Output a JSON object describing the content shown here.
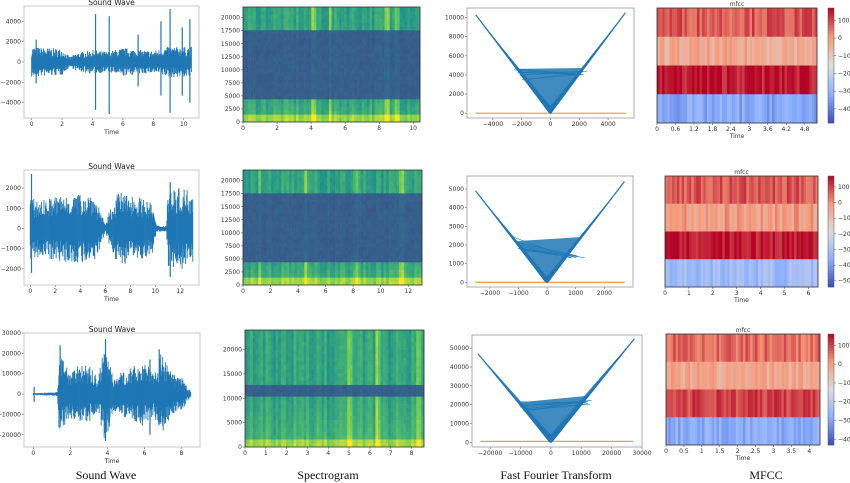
{
  "captions": [
    "Sound Wave",
    "Spectrogram",
    "Fast Fourier Transform",
    "MFCC"
  ],
  "colors": {
    "wave": "#1f77b4",
    "fft_baseline": "#ff9f40",
    "spectrogram_cmap": "viridis",
    "mfcc_cmap": "coolwarm"
  },
  "chart_data": [
    {
      "type": "line",
      "kind": "sound-wave",
      "row": 1,
      "title": "Sound Wave",
      "xlabel": "Time",
      "xlim": [
        -0.5,
        11
      ],
      "ylim": [
        -5500,
        5500
      ],
      "xticks": [
        0,
        2,
        4,
        6,
        8,
        10
      ],
      "yticks": [
        -4000,
        -2000,
        0,
        2000,
        4000
      ],
      "envelope": [
        [
          0,
          1500
        ],
        [
          2,
          1300
        ],
        [
          2.5,
          500
        ],
        [
          3,
          900
        ],
        [
          4,
          1200
        ],
        [
          5,
          1000
        ],
        [
          6,
          1400
        ],
        [
          7,
          1200
        ],
        [
          8,
          1100
        ],
        [
          9,
          1500
        ],
        [
          10.5,
          1500
        ]
      ],
      "peaks": [
        [
          0.3,
          2200,
          -2100
        ],
        [
          4.2,
          4700,
          -4700
        ],
        [
          5.1,
          4500,
          -5100
        ],
        [
          7,
          2700,
          -2400
        ],
        [
          8.5,
          4000,
          -3300
        ],
        [
          9.1,
          5200,
          -5000
        ],
        [
          9.9,
          3400,
          -3300
        ],
        [
          10.4,
          4200,
          -4000
        ]
      ]
    },
    {
      "type": "heatmap",
      "kind": "spectrogram",
      "row": 1,
      "xlim": [
        0,
        10.4
      ],
      "ylim": [
        0,
        22050
      ],
      "xticks": [
        0,
        2,
        4,
        6,
        8,
        10
      ],
      "yticks": [
        0,
        2500,
        5000,
        7500,
        10000,
        12500,
        15000,
        17500,
        20000
      ],
      "low_energy_band": [
        4500,
        17500
      ],
      "bright_times": [
        4.2,
        5.1,
        8.5,
        9.1
      ]
    },
    {
      "type": "line",
      "kind": "fft",
      "row": 1,
      "xlim": [
        -5800,
        5800
      ],
      "ylim": [
        -500,
        11000
      ],
      "xticks": [
        -4000,
        -2000,
        0,
        2000,
        4000
      ],
      "yticks": [
        0,
        2000,
        4000,
        6000,
        8000,
        10000
      ],
      "left_end": [
        -5200,
        10300
      ],
      "right_end": [
        5200,
        10500
      ],
      "fan_top": 4500,
      "baseline": 0
    },
    {
      "type": "heatmap",
      "kind": "mfcc",
      "row": 1,
      "title": "mfcc",
      "xlabel": "Time",
      "xlim": [
        0,
        5.2
      ],
      "xticks": [
        0,
        0.6,
        1.2,
        1.8,
        2.4,
        3,
        3.6,
        4.2,
        4.8
      ],
      "colorbar_range": [
        -480,
        170
      ],
      "colorbar_ticks": [
        100,
        0,
        -100,
        -200,
        -300,
        -400
      ],
      "band_values": [
        80,
        -30,
        150,
        -330
      ]
    },
    {
      "type": "line",
      "kind": "sound-wave",
      "row": 2,
      "title": "Sound Wave",
      "xlabel": "Time",
      "xlim": [
        -0.5,
        13.5
      ],
      "ylim": [
        -2800,
        2900
      ],
      "xticks": [
        0,
        2,
        4,
        6,
        8,
        10,
        12
      ],
      "yticks": [
        -2000,
        -1000,
        0,
        1000,
        2000
      ],
      "envelope": [
        [
          0,
          1500
        ],
        [
          1,
          1400
        ],
        [
          2,
          1600
        ],
        [
          3,
          1700
        ],
        [
          4,
          1700
        ],
        [
          5,
          1800
        ],
        [
          5.7,
          800
        ],
        [
          6,
          150
        ],
        [
          6.4,
          1000
        ],
        [
          7,
          1800
        ],
        [
          8,
          1700
        ],
        [
          9,
          1500
        ],
        [
          9.8,
          1200
        ],
        [
          10.1,
          150
        ],
        [
          10.9,
          150
        ],
        [
          11,
          2000
        ],
        [
          13,
          2000
        ]
      ],
      "peaks": [
        [
          0.1,
          2700,
          -2200
        ],
        [
          11.2,
          2300,
          -2400
        ]
      ]
    },
    {
      "type": "heatmap",
      "kind": "spectrogram",
      "row": 2,
      "xlim": [
        0,
        13
      ],
      "ylim": [
        0,
        22050
      ],
      "xticks": [
        0,
        2,
        4,
        6,
        8,
        10,
        12
      ],
      "yticks": [
        0,
        2500,
        5000,
        7500,
        10000,
        12500,
        15000,
        17500,
        20000
      ],
      "low_energy_band": [
        4500,
        17500
      ],
      "bright_times": [
        1.2,
        4.5,
        8.3,
        11.5
      ]
    },
    {
      "type": "line",
      "kind": "fft",
      "row": 2,
      "xlim": [
        -2800,
        3000
      ],
      "ylim": [
        -250,
        5700
      ],
      "xticks": [
        -2000,
        -1000,
        0,
        1000,
        2000
      ],
      "yticks": [
        0,
        1000,
        2000,
        3000,
        4000,
        5000
      ],
      "left_end": [
        -2500,
        4900
      ],
      "right_end": [
        2700,
        5400
      ],
      "fan_top": 1500,
      "baseline": 0
    },
    {
      "type": "heatmap",
      "kind": "mfcc",
      "row": 2,
      "title": "mfcc",
      "xlabel": "Time",
      "xlim": [
        0,
        6.4
      ],
      "xticks": [
        0,
        1,
        2,
        3,
        4,
        5,
        6
      ],
      "colorbar_range": [
        -540,
        170
      ],
      "colorbar_ticks": [
        100,
        0,
        -100,
        -200,
        -300,
        -400,
        -500
      ],
      "band_values": [
        70,
        -20,
        150,
        -320
      ]
    },
    {
      "type": "line",
      "kind": "sound-wave",
      "row": 3,
      "title": "Sound Wave",
      "xlabel": "Time",
      "xlim": [
        -0.5,
        9
      ],
      "ylim": [
        -26000,
        30000
      ],
      "xticks": [
        0,
        2,
        4,
        6,
        8
      ],
      "yticks": [
        -20000,
        -10000,
        0,
        10000,
        20000,
        30000
      ],
      "envelope": [
        [
          0,
          500
        ],
        [
          1.3,
          1000
        ],
        [
          1.4,
          20000
        ],
        [
          2,
          12000
        ],
        [
          2.3,
          15000
        ],
        [
          3,
          14000
        ],
        [
          3.5,
          8000
        ],
        [
          3.9,
          26000
        ],
        [
          4.3,
          8000
        ],
        [
          5,
          12000
        ],
        [
          6,
          16000
        ],
        [
          6.5,
          10000
        ],
        [
          6.9,
          20000
        ],
        [
          7.5,
          10000
        ],
        [
          8,
          8000
        ],
        [
          8.5,
          1500
        ]
      ],
      "peaks": [
        [
          0.05,
          3500,
          -3800
        ],
        [
          1.45,
          24000,
          -14000
        ],
        [
          3.9,
          27000,
          -23000
        ],
        [
          6.3,
          17000,
          -20000
        ],
        [
          6.8,
          22000,
          -15000
        ]
      ]
    },
    {
      "type": "heatmap",
      "kind": "spectrogram",
      "row": 3,
      "xlim": [
        0,
        8.6
      ],
      "ylim": [
        0,
        24000
      ],
      "xticks": [
        0,
        1,
        2,
        3,
        4,
        5,
        6,
        7,
        8
      ],
      "yticks": [
        0,
        5000,
        10000,
        15000,
        20000
      ],
      "low_energy_band": [
        10000,
        13000
      ],
      "bright_times": [
        5.0,
        6.35,
        8.3
      ]
    },
    {
      "type": "line",
      "kind": "fft",
      "row": 3,
      "xlim": [
        -26000,
        30000
      ],
      "ylim": [
        -2500,
        57000
      ],
      "xticks": [
        -20000,
        -10000,
        0,
        10000,
        20000,
        30000
      ],
      "yticks": [
        0,
        10000,
        20000,
        30000,
        40000,
        50000
      ],
      "left_end": [
        -24000,
        47000
      ],
      "right_end": [
        27500,
        55000
      ],
      "fan_top": 23000,
      "baseline": 500
    },
    {
      "type": "heatmap",
      "kind": "mfcc",
      "row": 3,
      "title": "mfcc",
      "xlabel": "Time",
      "xlim": [
        0,
        4.3
      ],
      "xticks": [
        0,
        0.5,
        1,
        1.5,
        2,
        2.5,
        3,
        3.5,
        4
      ],
      "colorbar_range": [
        -430,
        160
      ],
      "colorbar_ticks": [
        100,
        0,
        -100,
        -200,
        -300,
        -400
      ],
      "band_values": [
        60,
        -20,
        100,
        -280
      ]
    }
  ]
}
